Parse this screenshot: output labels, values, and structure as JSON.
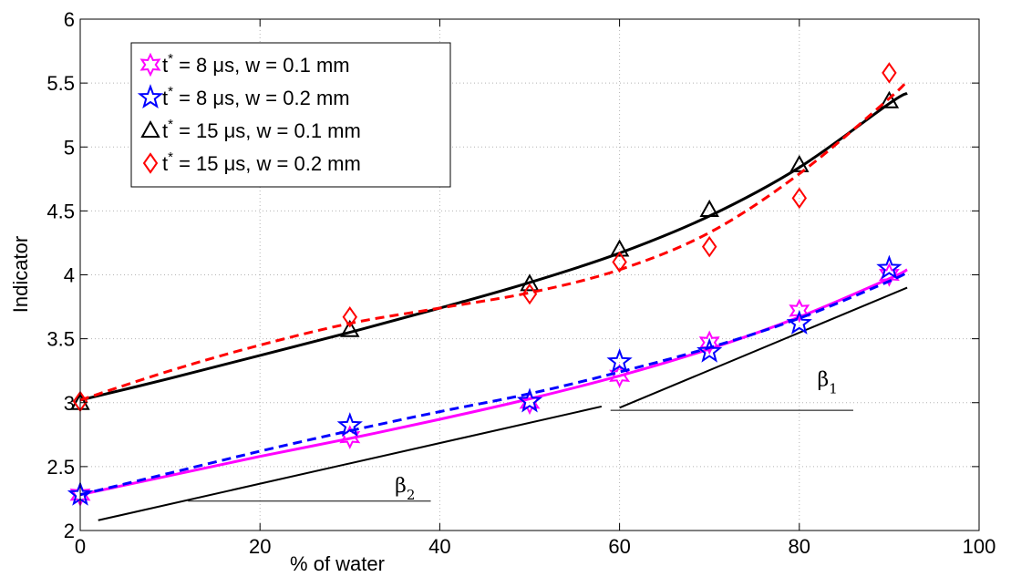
{
  "chart_data": {
    "type": "scatter",
    "xlabel": "% of water",
    "ylabel": "Indicator",
    "xlim": [
      0,
      100
    ],
    "ylim": [
      2,
      6
    ],
    "xticks": [
      0,
      20,
      40,
      60,
      80,
      100
    ],
    "yticks": [
      2,
      2.5,
      3,
      3.5,
      4,
      4.5,
      5,
      5.5,
      6
    ],
    "grid": true,
    "legend_position": "top-left",
    "series": [
      {
        "name": "t* = 8 μs, w = 0.1 mm",
        "legend_parts": {
          "t": "t",
          "sup": "*",
          "rest": " = 8 μs, w = 0.1 mm"
        },
        "marker": "hexagram",
        "color": "#ff00ff",
        "line_style": "solid",
        "points": {
          "x": [
            0,
            30,
            50,
            60,
            70,
            80,
            90
          ],
          "y": [
            2.28,
            2.73,
            3.0,
            3.21,
            3.47,
            3.72,
            4.0
          ]
        },
        "fit": {
          "x": [
            0,
            10,
            20,
            30,
            40,
            50,
            60,
            70,
            80,
            90,
            92
          ],
          "y": [
            2.28,
            2.43,
            2.58,
            2.72,
            2.87,
            3.03,
            3.21,
            3.42,
            3.67,
            3.97,
            4.04
          ]
        }
      },
      {
        "name": "t* = 8 μs, w = 0.2 mm",
        "legend_parts": {
          "t": "t",
          "sup": "*",
          "rest": " = 8 μs, w = 0.2 mm"
        },
        "marker": "pentagram",
        "color": "#0000ff",
        "line_style": "dashed",
        "points": {
          "x": [
            0,
            30,
            50,
            60,
            70,
            80,
            90
          ],
          "y": [
            2.28,
            2.82,
            3.01,
            3.32,
            3.4,
            3.62,
            4.05
          ]
        },
        "fit": {
          "x": [
            0,
            10,
            20,
            30,
            40,
            50,
            60,
            70,
            80,
            90,
            92
          ],
          "y": [
            2.28,
            2.45,
            2.62,
            2.78,
            2.93,
            3.07,
            3.24,
            3.43,
            3.66,
            3.95,
            4.02
          ]
        }
      },
      {
        "name": "t* = 15 μs, w = 0.1 mm",
        "legend_parts": {
          "t": "t",
          "sup": "*",
          "rest": " = 15 μs, w = 0.1 mm"
        },
        "marker": "triangle",
        "color": "#000000",
        "line_style": "solid",
        "points": {
          "x": [
            0,
            30,
            50,
            60,
            70,
            80,
            90
          ],
          "y": [
            3.0,
            3.57,
            3.93,
            4.2,
            4.51,
            4.86,
            5.36
          ]
        },
        "fit": {
          "x": [
            0,
            10,
            20,
            30,
            40,
            50,
            60,
            70,
            80,
            90,
            92
          ],
          "y": [
            3.02,
            3.19,
            3.37,
            3.55,
            3.74,
            3.94,
            4.17,
            4.46,
            4.84,
            5.34,
            5.42
          ]
        }
      },
      {
        "name": "t* = 15 μs, w = 0.2 mm",
        "legend_parts": {
          "t": "t",
          "sup": "*",
          "rest": " = 15 μs, w = 0.2 mm"
        },
        "marker": "diamond",
        "color": "#ff0000",
        "line_style": "dashed",
        "points": {
          "x": [
            0,
            30,
            50,
            60,
            70,
            80,
            90
          ],
          "y": [
            3.01,
            3.67,
            3.85,
            4.1,
            4.22,
            4.6,
            5.58
          ]
        },
        "fit": {
          "x": [
            0,
            10,
            20,
            30,
            40,
            50,
            60,
            70,
            80,
            90,
            92
          ],
          "y": [
            3.02,
            3.25,
            3.45,
            3.62,
            3.74,
            3.86,
            4.04,
            4.33,
            4.79,
            5.38,
            5.52
          ]
        }
      }
    ],
    "annotations": [
      {
        "label": "β",
        "sub": "1",
        "x": 82,
        "y": 3.13,
        "slope_line": {
          "x": [
            60,
            92
          ],
          "y": [
            2.96,
            3.9
          ]
        },
        "ref_line": {
          "x": [
            59,
            86
          ],
          "y": [
            2.94,
            2.94
          ]
        }
      },
      {
        "label": "β",
        "sub": "2",
        "x": 35,
        "y": 2.3,
        "slope_line": {
          "x": [
            2,
            58
          ],
          "y": [
            2.08,
            2.97
          ]
        },
        "ref_line": {
          "x": [
            12,
            39
          ],
          "y": [
            2.23,
            2.23
          ]
        }
      }
    ]
  }
}
